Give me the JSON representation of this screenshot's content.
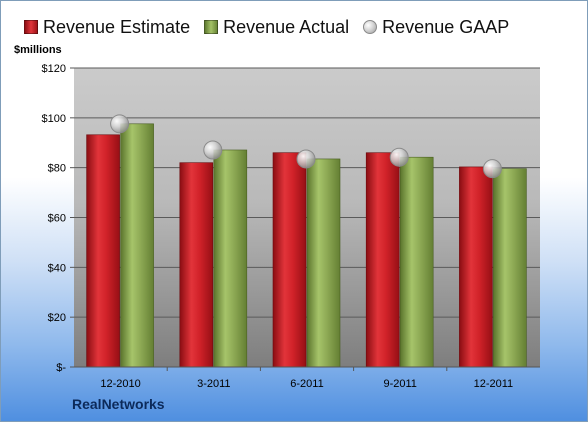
{
  "legend": {
    "estimate": "Revenue Estimate",
    "actual": "Revenue Actual",
    "gaap": "Revenue GAAP"
  },
  "unit_label": "$millions",
  "company": "RealNetworks",
  "colors": {
    "estimate": "#cc2027",
    "actual": "#8eaa55",
    "gaap": "#c8c8c8",
    "plot_top": "#c9c9c9",
    "plot_bottom": "#808080"
  },
  "chart_data": {
    "type": "bar",
    "categories": [
      "12-2010",
      "3-2011",
      "6-2011",
      "9-2011",
      "12-2011"
    ],
    "series": [
      {
        "name": "Revenue Estimate",
        "type": "bar",
        "values": [
          93.2,
          82.0,
          86.0,
          86.0,
          80.3
        ]
      },
      {
        "name": "Revenue Actual",
        "type": "bar",
        "values": [
          97.6,
          87.1,
          83.5,
          84.2,
          79.6
        ]
      },
      {
        "name": "Revenue GAAP",
        "type": "scatter",
        "values": [
          97.6,
          87.1,
          83.5,
          84.2,
          79.6
        ]
      }
    ],
    "yticks": [
      "$-",
      "$20",
      "$40",
      "$60",
      "$80",
      "$100",
      "$120"
    ],
    "ylim": [
      0,
      120
    ],
    "ylabel": "$millions",
    "title": "",
    "xlabel": "",
    "grid": true,
    "legend_position": "top"
  }
}
